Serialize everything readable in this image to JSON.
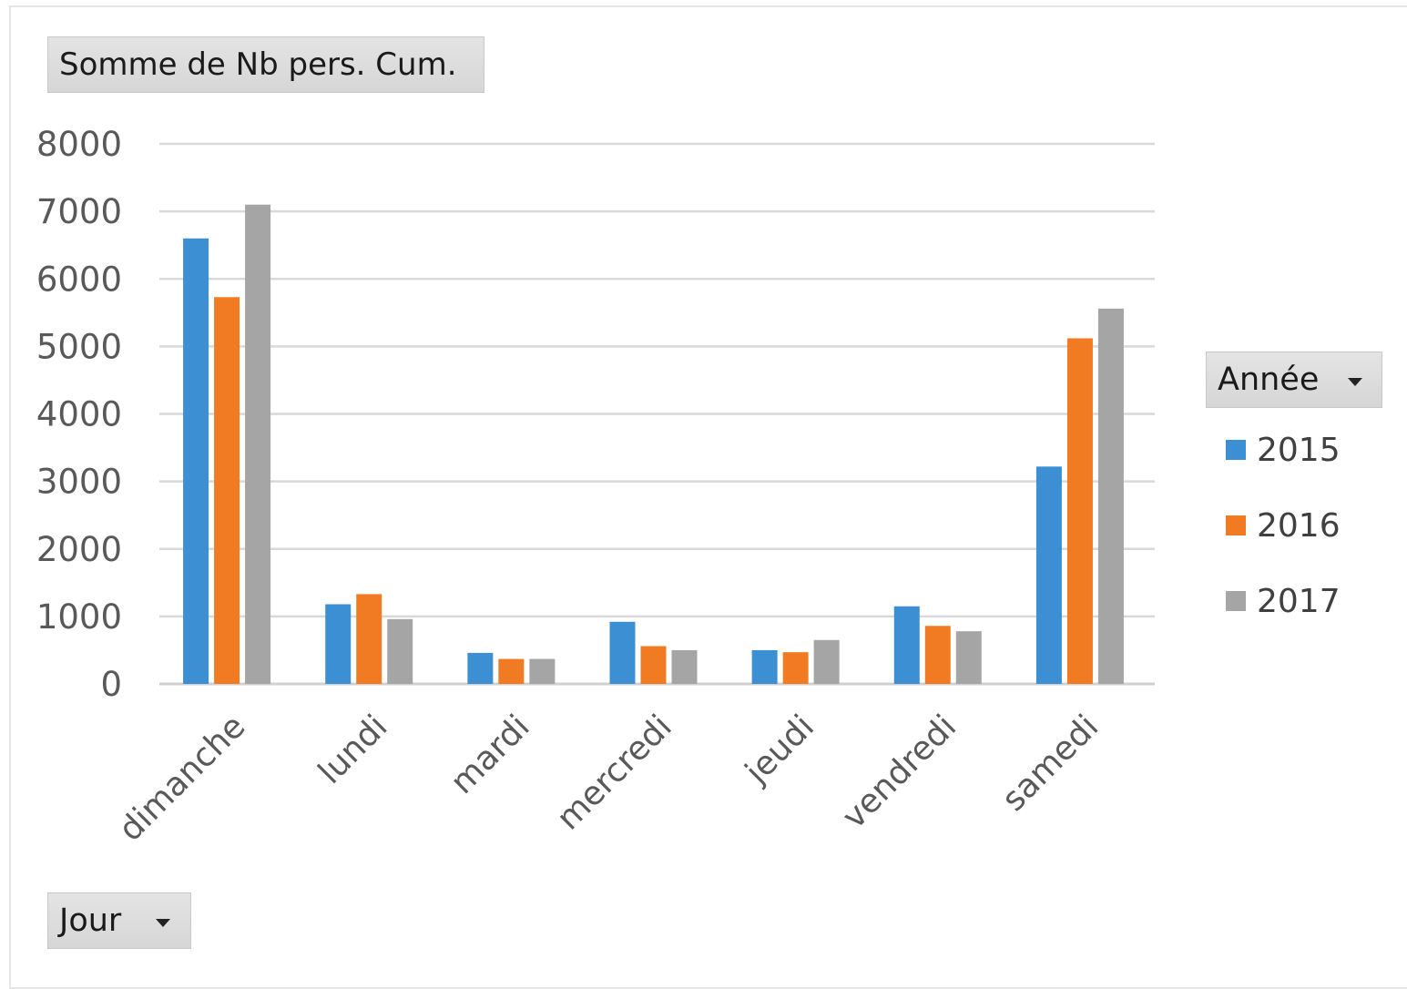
{
  "pivot": {
    "value_field_label": "Somme de Nb pers. Cum.",
    "legend_field_label": "Année",
    "axis_field_label": "Jour"
  },
  "chart_data": {
    "type": "bar",
    "categories": [
      "dimanche",
      "lundi",
      "mardi",
      "mercredi",
      "jeudi",
      "vendredi",
      "samedi"
    ],
    "series": [
      {
        "name": "2015",
        "color": "#3c8fd3",
        "values": [
          6600,
          1180,
          460,
          920,
          500,
          1150,
          3220
        ]
      },
      {
        "name": "2016",
        "color": "#f07b23",
        "values": [
          5730,
          1330,
          370,
          560,
          470,
          860,
          5120
        ]
      },
      {
        "name": "2017",
        "color": "#a5a5a5",
        "values": [
          7100,
          960,
          370,
          500,
          650,
          780,
          5560
        ]
      }
    ],
    "ylim": [
      0,
      8000
    ],
    "yticks": [
      0,
      1000,
      2000,
      3000,
      4000,
      5000,
      6000,
      7000,
      8000
    ],
    "grid": true,
    "legend_position": "right"
  }
}
